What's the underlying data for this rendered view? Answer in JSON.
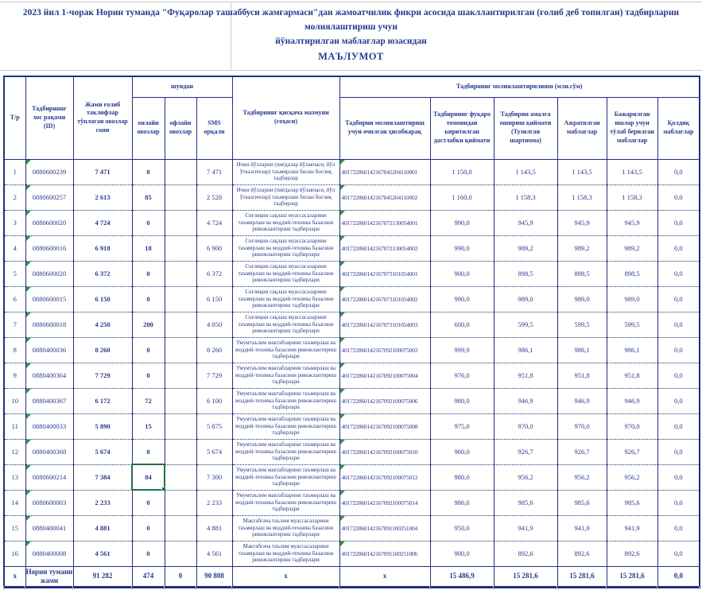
{
  "title": {
    "line1": "2023 йил 1-чорак  Норин туманда \"Фуқаролар ташаббуси жамғармаси\"дан жамоатчилик фикри асосида шакллантирилган (ғолиб деб топилган) тадбирларни",
    "line2": "молиялаштириш учун",
    "line3": "йўналтирилган маблағлар юзасидан",
    "line4": "МАЪЛУМОТ"
  },
  "header": {
    "tr": "Т/р",
    "id": "Тадбирнинг хос рақами (ID)",
    "votes": "Жами ғолиб таклифлар тўплаган овозлар сони",
    "shundan": "шундан",
    "online": "онлайн овозлар",
    "offline": "офлайн овозлар",
    "sms": "SMS орқали",
    "summary": "Тадбирнинг қисқача мазмуни (соҳаси)",
    "financing": "Тадбирнинг молиялаштирилиши (млн.сўм)",
    "account": "Тадбирни молиялаштириш учун очилган ҳисобварақ",
    "initial": "Тадбирнинг фуқаро томонидан киритилган дастлабки қиймати",
    "contract": "Тадбирни амалга ошириш қиймати (Тузилган шартнома)",
    "allocated": "Ажратилган маблағлар",
    "paid": "Бажарилган ишлар учун тўлаб берилган маблағлар",
    "remainder": "Қолдиқ маблағлар"
  },
  "rows": [
    {
      "tr": "1",
      "id": "0880600239",
      "votes": "7 471",
      "online": "0",
      "offline": "",
      "sms": "7 471",
      "summary": "Ички йўлларни (пиёдалар йўлакчаси, йўл ўтказгичлар) таъмирлаш билан боғлиқ тадбирлар",
      "account": "401722860142167045204110001",
      "initial": "1 150,0",
      "contract": "1 143,5",
      "allocated": "1 143,5",
      "paid": "1 143,5",
      "remainder": "0,0"
    },
    {
      "tr": "2",
      "id": "0880600257",
      "votes": "2 613",
      "online": "85",
      "offline": "",
      "sms": "2 528",
      "summary": "Ички йўлларни (пиёдалар йўлакчаси, йўл ўтказгичлар) таъмирлаш билан боғлиқ тадбирлар",
      "account": "401722860142167045204110002",
      "initial": "1 160,0",
      "contract": "1 158,3",
      "allocated": "1 158,3",
      "paid": "1 158,3",
      "remainder": "0,0"
    },
    {
      "tr": "3",
      "id": "0880600020",
      "votes": "4 724",
      "online": "0",
      "offline": "",
      "sms": "4 724",
      "summary": "Соғлиқни сақлаш муассасаларини таъмирлаш ва моддий-техника базасини ривожлантириш тадбирлари",
      "account": "401722860142167072130054001",
      "initial": "990,0",
      "contract": "945,9",
      "allocated": "945,9",
      "paid": "945,9",
      "remainder": "0,0"
    },
    {
      "tr": "4",
      "id": "0880600016",
      "votes": "6 918",
      "online": "18",
      "offline": "",
      "sms": "6 900",
      "summary": "Соғлиқни сақлаш муассасаларини таъмирлаш ва моддий-техника базасини ривожлантириш тадбирлари",
      "account": "401722860142167072130054002",
      "initial": "990,0",
      "contract": "989,2",
      "allocated": "989,2",
      "paid": "989,2",
      "remainder": "0,0"
    },
    {
      "tr": "5",
      "id": "0880600020",
      "votes": "6 372",
      "online": "0",
      "offline": "",
      "sms": "6 372",
      "summary": "Соғлиқни сақлаш муассасаларини таъмирлаш ва моддий-техника базасини ривожлантириш тадбирлари",
      "account": "401722860142167073101054001",
      "initial": "900,0",
      "contract": "898,5",
      "allocated": "898,5",
      "paid": "898,5",
      "remainder": "0,0"
    },
    {
      "tr": "6",
      "id": "0880600015",
      "votes": "6 150",
      "online": "0",
      "offline": "",
      "sms": "6 150",
      "summary": "Соғлиқни сақлаш муассасаларини таъмирлаш ва моддий-техника базасини ривожлантириш тадбирлари",
      "account": "401722860142167073101054002",
      "initial": "990,0",
      "contract": "989,0",
      "allocated": "989,0",
      "paid": "989,0",
      "remainder": "0,0"
    },
    {
      "tr": "7",
      "id": "0880600018",
      "votes": "4 250",
      "online": "200",
      "offline": "",
      "sms": "4 050",
      "summary": "Соғлиқни сақлаш муассасаларини таъмирлаш ва моддий-техника базасини ривожлантириш тадбирлари",
      "account": "401722860142167073101054003",
      "initial": "600,0",
      "contract": "599,5",
      "allocated": "599,5",
      "paid": "599,5",
      "remainder": "0,0"
    },
    {
      "tr": "8",
      "id": "0880400036",
      "votes": "8 260",
      "online": "0",
      "offline": "",
      "sms": "8 260",
      "summary": "Умумтаълим мактабларини таъмирлаш ва моддий-техника базасини ривожлантириш тадбирлари",
      "account": "401722860142167092100075002",
      "initial": "999,9",
      "contract": "986,1",
      "allocated": "986,1",
      "paid": "986,1",
      "remainder": "0,0"
    },
    {
      "tr": "9",
      "id": "0880400364",
      "votes": "7 729",
      "online": "0",
      "offline": "",
      "sms": "7 729",
      "summary": "Умумтаълим мактабларини таъмирлаш ва моддий-техника базасини ривожлантириш тадбирлари",
      "account": "401722860142167092100075004",
      "initial": "976,0",
      "contract": "951,8",
      "allocated": "951,8",
      "paid": "951,8",
      "remainder": "0,0"
    },
    {
      "tr": "10",
      "id": "0880400367",
      "votes": "6 172",
      "online": "72",
      "offline": "",
      "sms": "6 100",
      "summary": "Умумтаълим мактабларини таъмирлаш ва моддий-техника базасини ривожлантириш тадбирлари",
      "account": "401722860142167092100075006",
      "initial": "980,0",
      "contract": "946,9",
      "allocated": "946,9",
      "paid": "946,9",
      "remainder": "0,0"
    },
    {
      "tr": "11",
      "id": "0880400033",
      "votes": "5 890",
      "online": "15",
      "offline": "",
      "sms": "5 875",
      "summary": "Умумтаълим мактабларини таъмирлаш ва моддий-техника базасини ривожлантириш тадбирлари",
      "account": "401722860142167092100075008",
      "initial": "975,0",
      "contract": "970,0",
      "allocated": "970,0",
      "paid": "970,0",
      "remainder": "0,0"
    },
    {
      "tr": "12",
      "id": "0880400368",
      "votes": "5 674",
      "online": "0",
      "offline": "",
      "sms": "5 674",
      "summary": "Умумтаълим мактабларини таъмирлаш ва моддий-техника базасини ривожлантириш тадбирлари",
      "account": "401722860142167092100075010",
      "initial": "960,0",
      "contract": "926,7",
      "allocated": "926,7",
      "paid": "926,7",
      "remainder": "0,0"
    },
    {
      "tr": "13",
      "id": "0880600214",
      "votes": "7 384",
      "online": "84",
      "offline": "",
      "sms": "7 300",
      "summary": "Умумтаълим мактабларини таъмирлаш ва моддий-техника базасини ривожлантириш тадбирлари",
      "account": "401722860142167092100075012",
      "initial": "980,0",
      "contract": "956,2",
      "allocated": "956,2",
      "paid": "956,2",
      "remainder": "0,0"
    },
    {
      "tr": "14",
      "id": "0880600003",
      "votes": "2 233",
      "online": "0",
      "offline": "",
      "sms": "2 233",
      "summary": "Умумтаълим мактабларини таъмирлаш ва моддий-техника базасини ривожлантириш тадбирлари",
      "account": "401722860142167092100075014",
      "initial": "986,0",
      "contract": "985,6",
      "allocated": "985,6",
      "paid": "985,6",
      "remainder": "0,0"
    },
    {
      "tr": "15",
      "id": "0880400041",
      "votes": "4 881",
      "online": "0",
      "offline": "",
      "sms": "4 881",
      "summary": "Мактабгача таълим муассасаларини таъмирлаш ва моддий-техника базасини ривожлантириш тадбирлари",
      "account": "401722860142167091100251004",
      "initial": "950,0",
      "contract": "941,9",
      "allocated": "941,9",
      "paid": "941,9",
      "remainder": "0,0"
    },
    {
      "tr": "16",
      "id": "0880400008",
      "votes": "4 561",
      "online": "0",
      "offline": "",
      "sms": "4 561",
      "summary": "Мактабгача таълим муассасаларини таъмирлаш ва моддий-техника базасини ривожлантириш тадбирлари",
      "account": "401722860142167091100251006",
      "initial": "900,0",
      "contract": "892,6",
      "allocated": "892,6",
      "paid": "892,6",
      "remainder": "0,0"
    }
  ],
  "total_row": {
    "tr": "x",
    "name": "Норин тумани жами",
    "votes": "91 282",
    "online": "474",
    "offline": "0",
    "sms": "90 808",
    "summary": "x",
    "account": "x",
    "initial": "15 486,9",
    "contract": "15 281,6",
    "allocated": "15 281,6",
    "paid": "15 281,6",
    "remainder": "0,0"
  },
  "selected_cell": {
    "row": 13,
    "col": "online"
  },
  "colors": {
    "text_navy": "#28388c",
    "border_navy": "#22307c",
    "error_flag_green": "#2d963c",
    "selection_green": "#1f7244"
  }
}
